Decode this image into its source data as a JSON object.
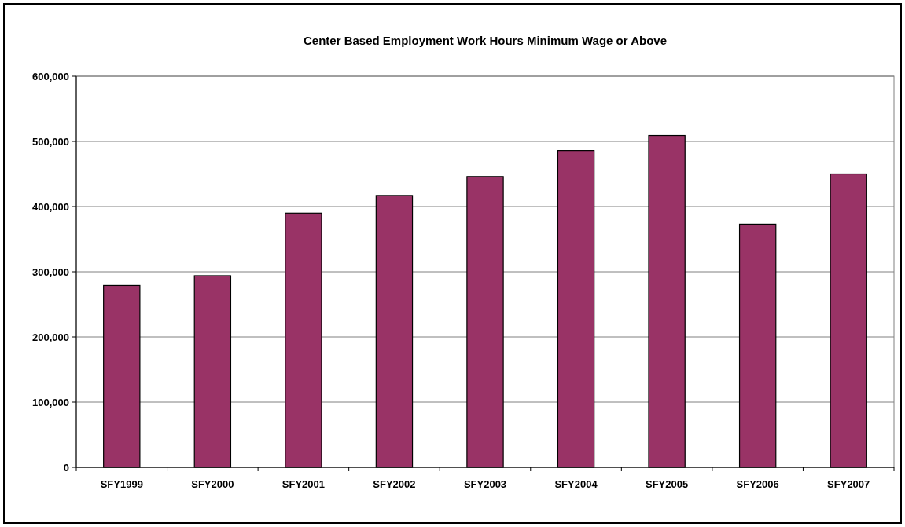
{
  "chart_data": {
    "type": "bar",
    "title": "Center Based Employment Work Hours Minimum Wage or Above",
    "categories": [
      "SFY1999",
      "SFY2000",
      "SFY2001",
      "SFY2002",
      "SFY2003",
      "SFY2004",
      "SFY2005",
      "SFY2006",
      "SFY2007"
    ],
    "values": [
      279000,
      294000,
      390000,
      417000,
      446000,
      486000,
      509000,
      373000,
      450000
    ],
    "color": "#993366",
    "ylim": [
      0,
      600000
    ],
    "yticks": [
      {
        "value": 0,
        "label": "0"
      },
      {
        "value": 100000,
        "label": "100,000"
      },
      {
        "value": 200000,
        "label": "200,000"
      },
      {
        "value": 300000,
        "label": "300,000"
      },
      {
        "value": 400000,
        "label": "400,000"
      },
      {
        "value": 500000,
        "label": "500,000"
      },
      {
        "value": 600000,
        "label": "600,000"
      }
    ],
    "grid": "y"
  }
}
